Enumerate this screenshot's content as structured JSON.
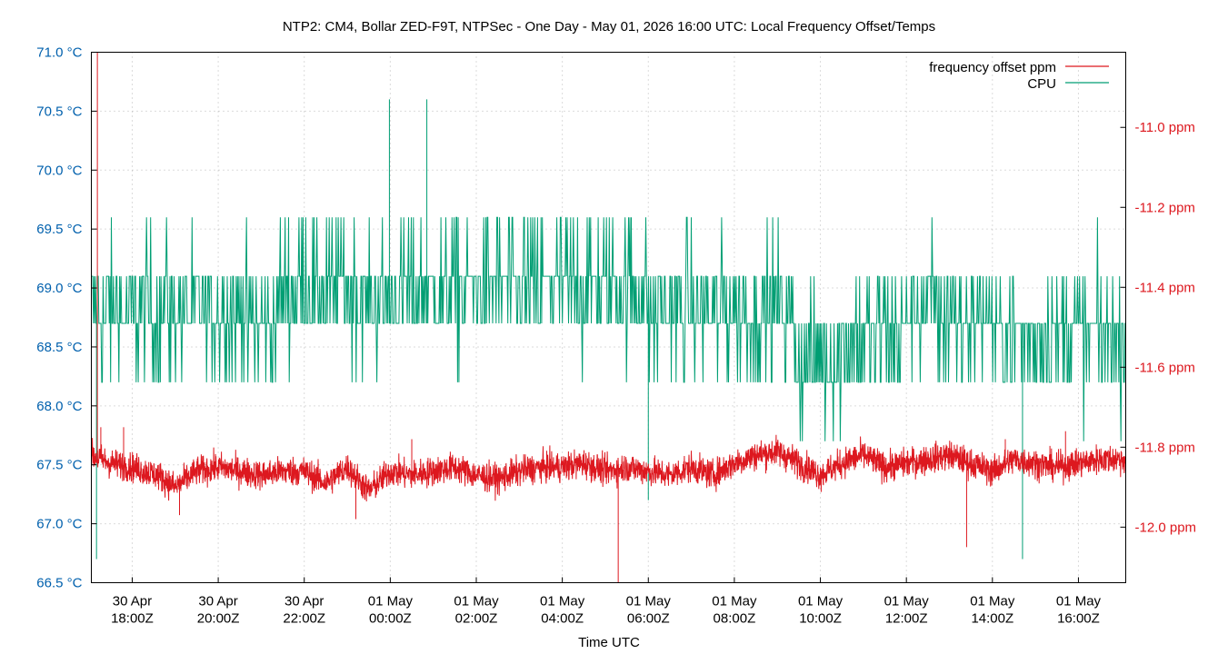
{
  "chart_data": {
    "type": "line",
    "title": "NTP2: CM4, Bollar ZED-F9T, NTPSec - One Day - May 01, 2026 16:00 UTC: Local Frequency Offset/Temps",
    "xlabel": "Time UTC",
    "x_range_hours": [
      -0.95,
      23.1
    ],
    "x_ticks": [
      {
        "hour": 0,
        "label": [
          "30 Apr",
          "18:00Z"
        ]
      },
      {
        "hour": 2,
        "label": [
          "30 Apr",
          "20:00Z"
        ]
      },
      {
        "hour": 4,
        "label": [
          "30 Apr",
          "22:00Z"
        ]
      },
      {
        "hour": 6,
        "label": [
          "01 May",
          "00:00Z"
        ]
      },
      {
        "hour": 8,
        "label": [
          "01 May",
          "02:00Z"
        ]
      },
      {
        "hour": 10,
        "label": [
          "01 May",
          "04:00Z"
        ]
      },
      {
        "hour": 12,
        "label": [
          "01 May",
          "06:00Z"
        ]
      },
      {
        "hour": 14,
        "label": [
          "01 May",
          "08:00Z"
        ]
      },
      {
        "hour": 16,
        "label": [
          "01 May",
          "10:00Z"
        ]
      },
      {
        "hour": 18,
        "label": [
          "01 May",
          "12:00Z"
        ]
      },
      {
        "hour": 20,
        "label": [
          "01 May",
          "14:00Z"
        ]
      },
      {
        "hour": 22,
        "label": [
          "01 May",
          "16:00Z"
        ]
      }
    ],
    "y_left": {
      "range": [
        66.5,
        71.0
      ],
      "ticks": [
        66.5,
        67.0,
        67.5,
        68.0,
        68.5,
        69.0,
        69.5,
        70.0,
        70.5,
        71.0
      ],
      "tick_labels": [
        "66.5 °C",
        "67.0 °C",
        "67.5 °C",
        "68.0 °C",
        "68.5 °C",
        "69.0 °C",
        "69.5 °C",
        "70.0 °C",
        "70.5 °C",
        "71.0 °C"
      ],
      "color": "#0060ad"
    },
    "y_right": {
      "range": [
        -12.139,
        -10.812
      ],
      "ticks": [
        -12.0,
        -11.8,
        -11.6,
        -11.4,
        -11.2,
        -11.0
      ],
      "tick_labels": [
        "-12.0 ppm",
        "-11.8 ppm",
        "-11.6 ppm",
        "-11.4 ppm",
        "-11.2 ppm",
        "-11.0 ppm"
      ],
      "color": "#dd181f"
    },
    "grid": true,
    "legend_position": "top-right",
    "series": [
      {
        "name": "frequency offset ppm",
        "axis": "right",
        "color": "#dd181f",
        "trend_hours": [
          -0.95,
          -0.5,
          0,
          0.6,
          1.0,
          1.5,
          2.0,
          2.5,
          3.0,
          3.5,
          4.0,
          4.5,
          5.0,
          5.5,
          6.0,
          6.5,
          7.0,
          7.5,
          8.0,
          8.5,
          9.0,
          9.5,
          10.0,
          10.5,
          11.0,
          11.5,
          12.0,
          12.5,
          13.0,
          13.5,
          14.0,
          14.5,
          15.0,
          15.5,
          16.0,
          16.5,
          17.0,
          17.5,
          18.0,
          18.5,
          19.0,
          19.5,
          20.0,
          20.5,
          21.0,
          21.5,
          22.0,
          22.5,
          23.1
        ],
        "trend_ppm": [
          -11.82,
          -11.84,
          -11.85,
          -11.87,
          -11.9,
          -11.86,
          -11.85,
          -11.86,
          -11.87,
          -11.86,
          -11.86,
          -11.89,
          -11.85,
          -11.91,
          -11.86,
          -11.87,
          -11.86,
          -11.85,
          -11.87,
          -11.88,
          -11.86,
          -11.85,
          -11.85,
          -11.84,
          -11.86,
          -11.85,
          -11.86,
          -11.87,
          -11.85,
          -11.87,
          -11.84,
          -11.82,
          -11.81,
          -11.84,
          -11.87,
          -11.84,
          -11.82,
          -11.85,
          -11.84,
          -11.83,
          -11.82,
          -11.84,
          -11.86,
          -11.83,
          -11.84,
          -11.85,
          -11.84,
          -11.83,
          -11.83
        ],
        "noise_ppm": 0.035,
        "spikes": [
          {
            "hour": -0.81,
            "ppm": -10.812
          },
          {
            "hour": -0.73,
            "ppm": -11.75
          },
          {
            "hour": -0.2,
            "ppm": -11.75
          },
          {
            "hour": 1.1,
            "ppm": -11.97
          },
          {
            "hour": 5.2,
            "ppm": -11.98
          },
          {
            "hour": 6.5,
            "ppm": -11.78
          },
          {
            "hour": 11.3,
            "ppm": -12.139
          },
          {
            "hour": 19.4,
            "ppm": -12.05
          },
          {
            "hour": 20.3,
            "ppm": -11.78
          },
          {
            "hour": 21.7,
            "ppm": -11.76
          }
        ]
      },
      {
        "name": "CPU",
        "axis": "left",
        "color": "#009e73",
        "levels_c": [
          67.7,
          68.2,
          68.7,
          69.1,
          69.6,
          70.1
        ],
        "regime_hours": [
          -0.95,
          2.6,
          3.4,
          5.4,
          6.3,
          12.0,
          15.4,
          16.5,
          18.0,
          20.0,
          23.1
        ],
        "regime_mean_c": [
          68.8,
          68.7,
          69.0,
          68.9,
          69.0,
          68.8,
          68.4,
          68.6,
          68.8,
          68.6
        ],
        "spikes": [
          {
            "hour": -0.83,
            "c": 66.7
          },
          {
            "hour": 5.98,
            "c": 70.6
          },
          {
            "hour": 6.85,
            "c": 70.6
          },
          {
            "hour": 20.7,
            "c": 66.7
          },
          {
            "hour": 12.0,
            "c": 67.2
          }
        ]
      }
    ]
  }
}
